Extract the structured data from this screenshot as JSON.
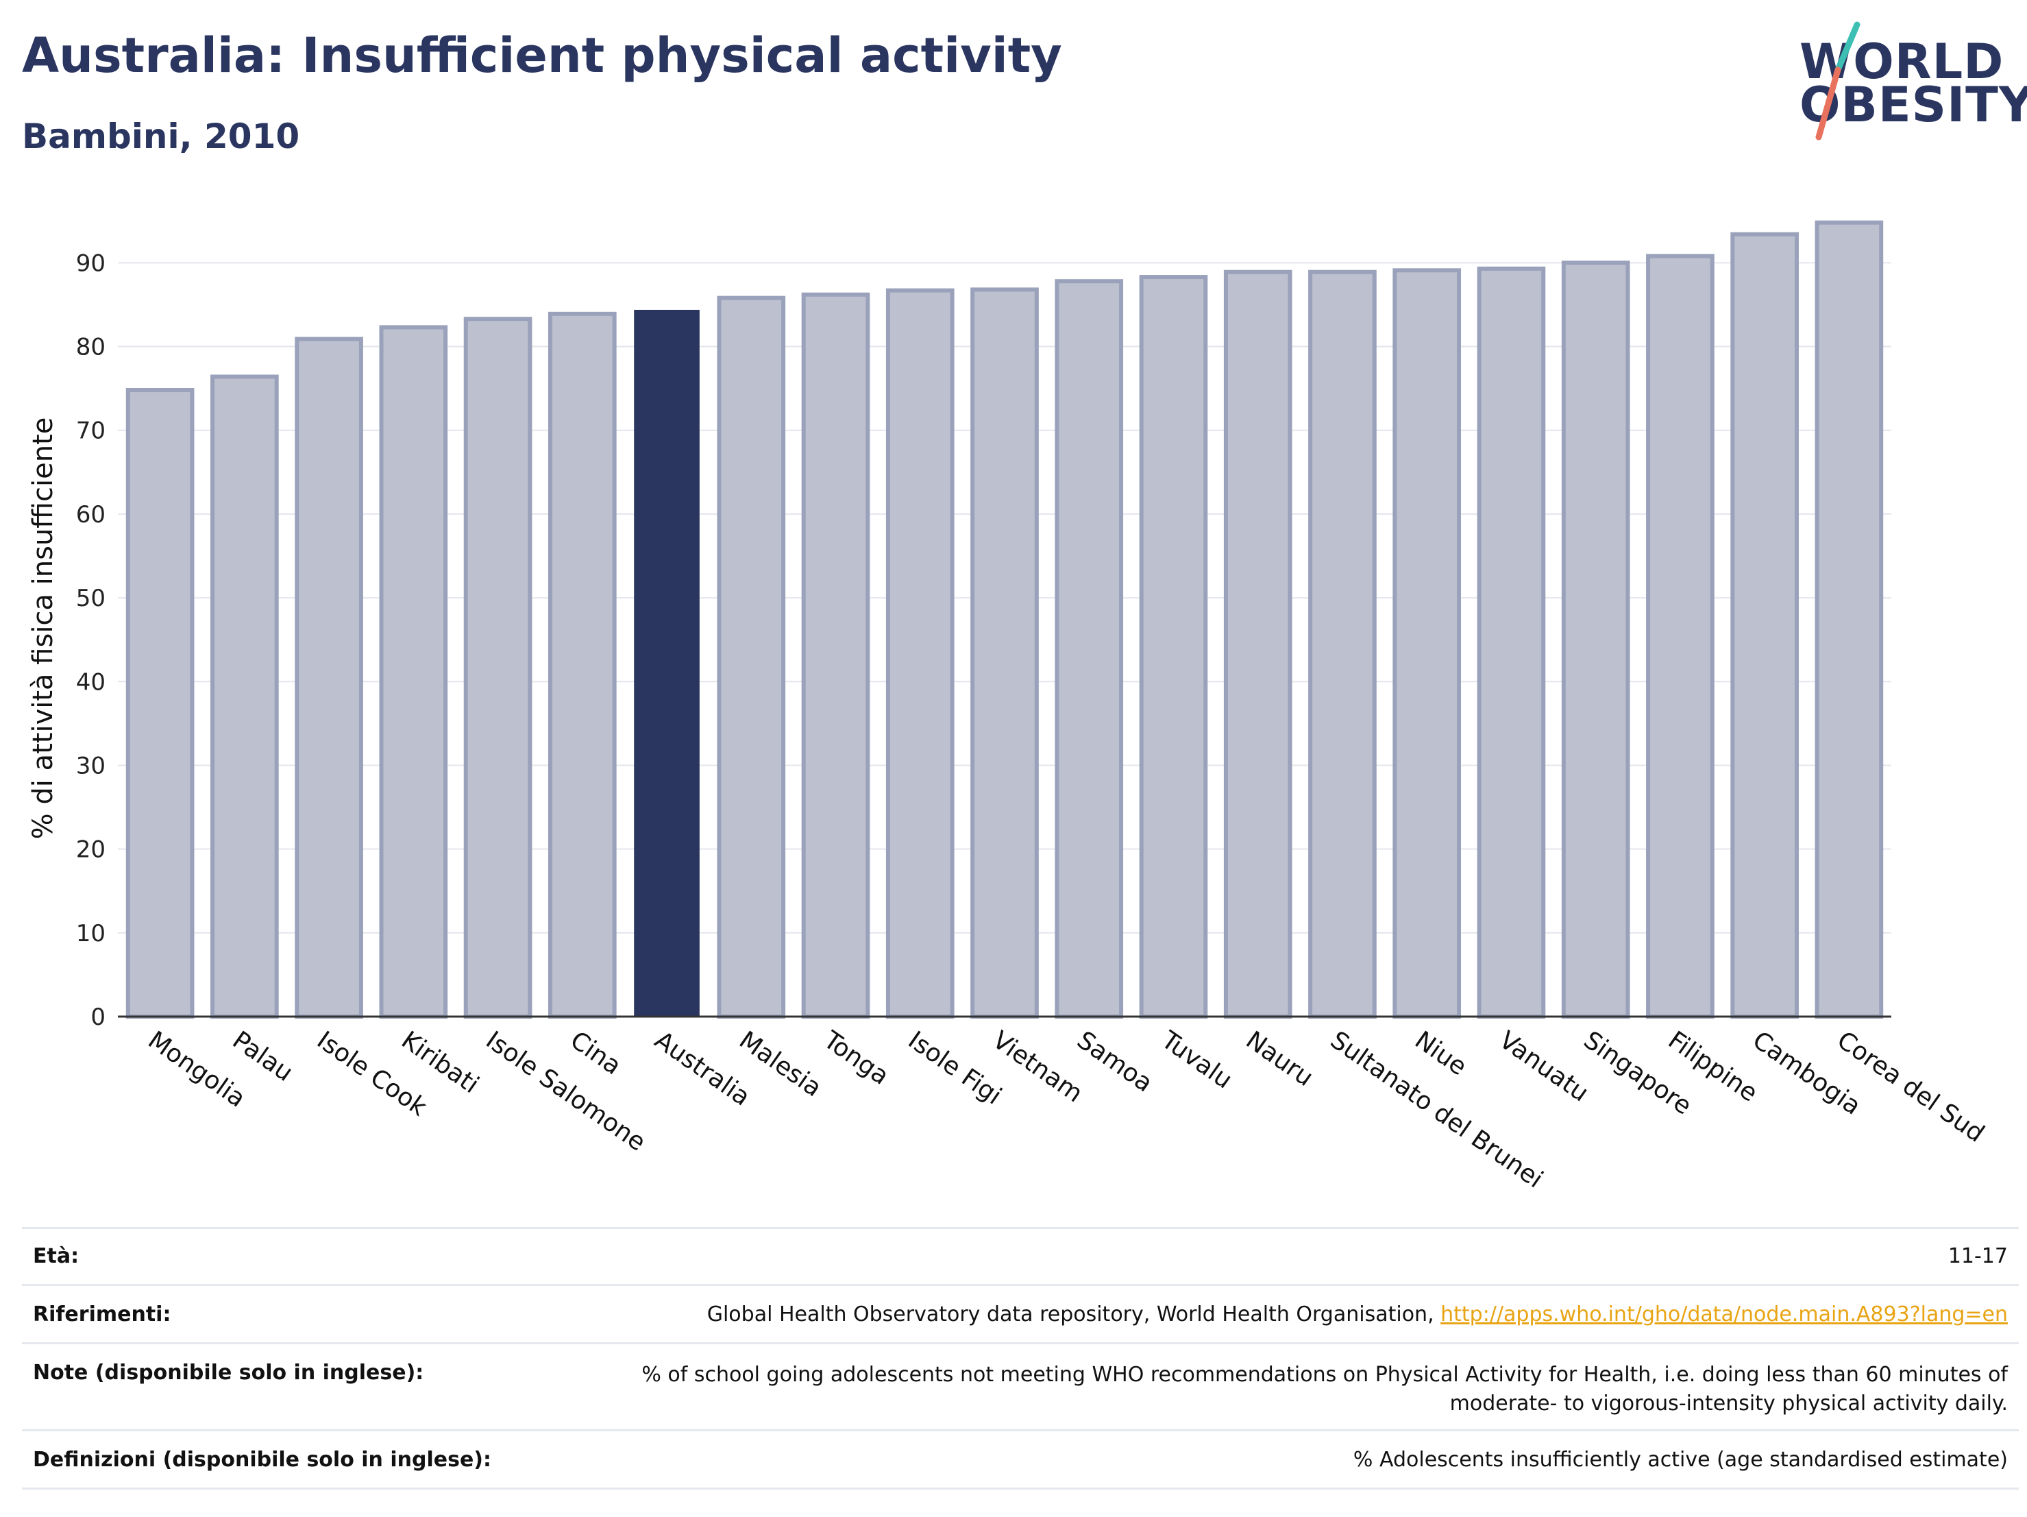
{
  "header": {
    "title": "Australia: Insufficient physical activity",
    "subtitle": "Bambini, 2010"
  },
  "logo": {
    "line1": "WORLD",
    "line2": "OBESITY",
    "colors": {
      "text": "#2a3560",
      "slash_top": "#3dbfb3",
      "slash_bottom": "#e8725e"
    }
  },
  "chart_data": {
    "type": "bar",
    "title": "",
    "xlabel": "",
    "ylabel": "% di attività fisica insufficiente",
    "ylim": [
      0,
      96
    ],
    "yticks": [
      0,
      10,
      20,
      30,
      40,
      50,
      60,
      70,
      80,
      90
    ],
    "grid": true,
    "legend": "none",
    "highlight": "Australia",
    "colors": {
      "bar": "#bcc0cf",
      "bar_border": "#9aa1ba",
      "highlight": "#2a3560",
      "grid": "#e4e6ee",
      "axis": "#333333"
    },
    "categories": [
      "Mongolia",
      "Palau",
      "Isole Cook",
      "Kiribati",
      "Isole Salomone",
      "Cina",
      "Australia",
      "Malesia",
      "Tonga",
      "Isole Figi",
      "Vietnam",
      "Samoa",
      "Tuvalu",
      "Nauru",
      "Sultanato del Brunei",
      "Niue",
      "Vanuatu",
      "Singapore",
      "Filippine",
      "Cambogia",
      "Corea del Sud"
    ],
    "values": [
      74.8,
      76.4,
      80.9,
      82.3,
      83.3,
      83.9,
      84.3,
      85.8,
      86.2,
      86.7,
      86.8,
      87.8,
      88.3,
      88.9,
      88.9,
      89.1,
      89.3,
      90.0,
      90.8,
      93.4,
      94.8
    ]
  },
  "meta": {
    "age_label": "Età:",
    "age_value": "11-17",
    "references_label": "Riferimenti:",
    "references_text": "Global Health Observatory data repository, World Health Organisation, ",
    "references_link": "http://apps.who.int/gho/data/node.main.A893?lang=en",
    "notes_label": "Note (disponibile solo in inglese):",
    "notes_value": "% of school going adolescents not meeting WHO recommendations on Physical Activity for Health, i.e. doing less than 60 minutes of moderate- to vigorous-intensity physical activity daily.",
    "definitions_label": "Definizioni (disponibile solo in inglese):",
    "definitions_value": "% Adolescents insufficiently active (age standardised estimate)"
  }
}
